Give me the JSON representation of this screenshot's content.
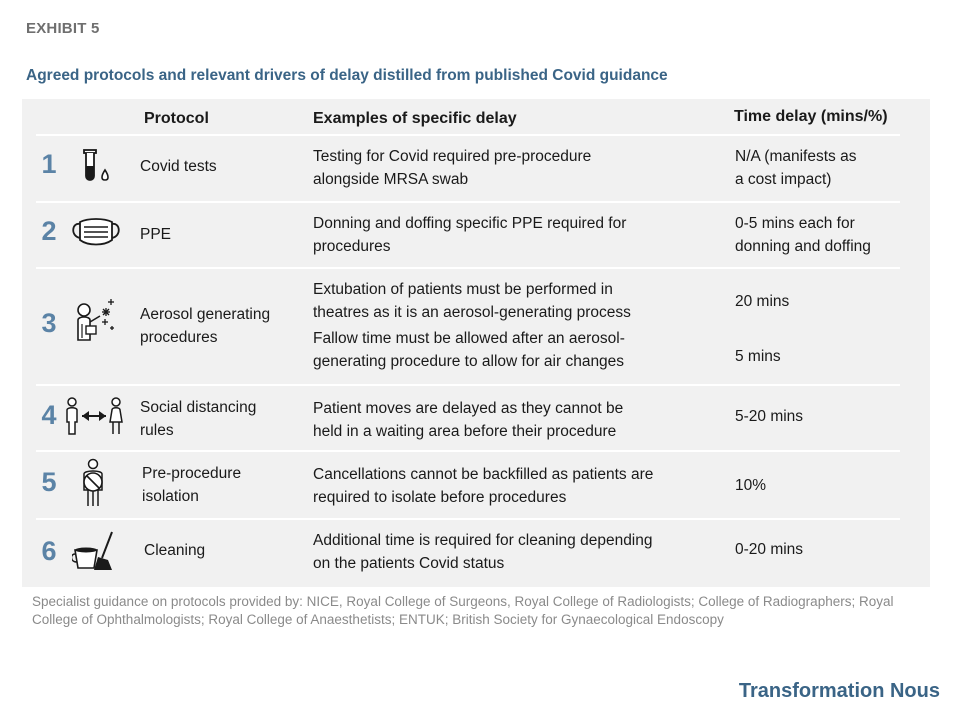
{
  "exhibit_label": "EXHIBIT 5",
  "subtitle": "Agreed protocols and relevant drivers of delay distilled from published Covid guidance",
  "table": {
    "headers": {
      "protocol": "Protocol",
      "examples": "Examples of specific delay",
      "time": "Time delay (mins/%)"
    },
    "rows": [
      {
        "number": "1",
        "icon": "test-tube-icon",
        "protocol_lines": [
          "Covid tests"
        ],
        "examples": [
          [
            "Testing for Covid required pre-procedure",
            "alongside MRSA swab"
          ]
        ],
        "time": [
          [
            "N/A (manifests as",
            "a cost impact)"
          ]
        ]
      },
      {
        "number": "2",
        "icon": "face-mask-icon",
        "protocol_lines": [
          "PPE"
        ],
        "examples": [
          [
            "Donning and doffing specific PPE required for",
            "procedures"
          ]
        ],
        "time": [
          [
            "0-5 mins each for",
            "donning and doffing"
          ]
        ]
      },
      {
        "number": "3",
        "icon": "aerosol-icon",
        "protocol_lines": [
          "Aerosol generating",
          "procedures"
        ],
        "examples": [
          [
            "Extubation of patients must be performed in",
            "theatres as it is an aerosol-generating process"
          ],
          [
            "Fallow time must be allowed after an aerosol-",
            "generating procedure to allow for air changes"
          ]
        ],
        "time": [
          [
            "20 mins"
          ],
          [
            "5 mins"
          ]
        ]
      },
      {
        "number": "4",
        "icon": "social-distancing-icon",
        "protocol_lines": [
          "Social distancing",
          "rules"
        ],
        "examples": [
          [
            "Patient moves are delayed as they cannot be",
            "held in a waiting area before their procedure"
          ]
        ],
        "time": [
          [
            "5-20 mins"
          ]
        ]
      },
      {
        "number": "5",
        "icon": "isolation-person-icon",
        "protocol_lines": [
          "Pre-procedure",
          "isolation"
        ],
        "examples": [
          [
            "Cancellations cannot be backfilled as patients are",
            "required to isolate before procedures"
          ]
        ],
        "time": [
          [
            "10%"
          ]
        ]
      },
      {
        "number": "6",
        "icon": "cleaning-icon",
        "protocol_lines": [
          "Cleaning"
        ],
        "examples": [
          [
            "Additional time is required for cleaning depending",
            "on the patients Covid status"
          ]
        ],
        "time": [
          [
            "0-20 mins"
          ]
        ]
      }
    ]
  },
  "footnote": "Specialist guidance on protocols provided by: NICE, Royal College of Surgeons, Royal College of Radiologists; College of Radiographers; Royal College of Ophthalmologists;  Royal College of Anaesthetists;   ENTUK; British Society for Gynaecological Endoscopy",
  "brand": "Transformation Nous",
  "colors": {
    "accent": "#3a6486",
    "number": "#5b83a6",
    "panel_bg": "#f1f1f1",
    "muted": "#8a8a8a"
  }
}
